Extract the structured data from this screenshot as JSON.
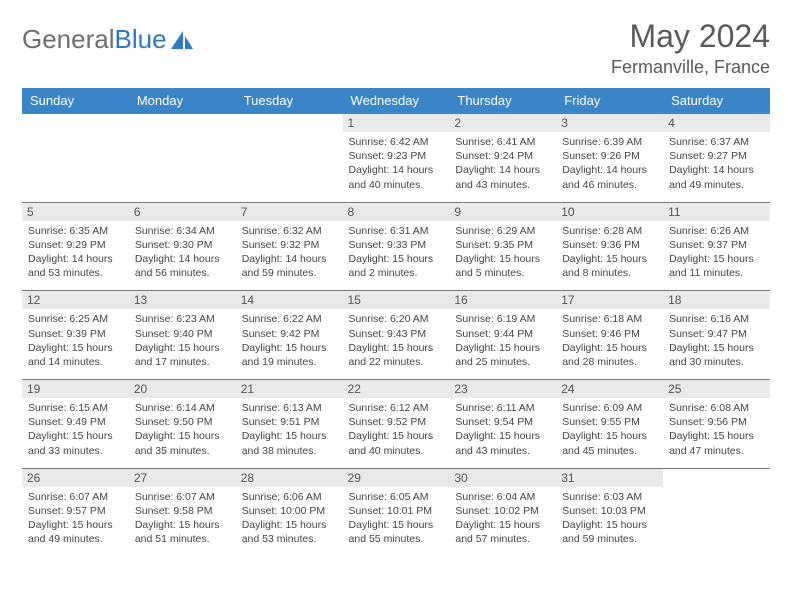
{
  "brand": {
    "part1": "General",
    "part2": "Blue"
  },
  "title": "May 2024",
  "location": "Fermanville, France",
  "colors": {
    "header_bg": "#3a85c7",
    "header_text": "#ffffff",
    "daynum_bg": "#e9e9e9",
    "border": "#7a7a7a",
    "brand_gray": "#6e6e6e",
    "brand_blue": "#2f7abf"
  },
  "day_headers": [
    "Sunday",
    "Monday",
    "Tuesday",
    "Wednesday",
    "Thursday",
    "Friday",
    "Saturday"
  ],
  "weeks": [
    [
      null,
      null,
      null,
      {
        "n": "1",
        "sr": "6:42 AM",
        "ss": "9:23 PM",
        "dl": "14 hours and 40 minutes."
      },
      {
        "n": "2",
        "sr": "6:41 AM",
        "ss": "9:24 PM",
        "dl": "14 hours and 43 minutes."
      },
      {
        "n": "3",
        "sr": "6:39 AM",
        "ss": "9:26 PM",
        "dl": "14 hours and 46 minutes."
      },
      {
        "n": "4",
        "sr": "6:37 AM",
        "ss": "9:27 PM",
        "dl": "14 hours and 49 minutes."
      }
    ],
    [
      {
        "n": "5",
        "sr": "6:35 AM",
        "ss": "9:29 PM",
        "dl": "14 hours and 53 minutes."
      },
      {
        "n": "6",
        "sr": "6:34 AM",
        "ss": "9:30 PM",
        "dl": "14 hours and 56 minutes."
      },
      {
        "n": "7",
        "sr": "6:32 AM",
        "ss": "9:32 PM",
        "dl": "14 hours and 59 minutes."
      },
      {
        "n": "8",
        "sr": "6:31 AM",
        "ss": "9:33 PM",
        "dl": "15 hours and 2 minutes."
      },
      {
        "n": "9",
        "sr": "6:29 AM",
        "ss": "9:35 PM",
        "dl": "15 hours and 5 minutes."
      },
      {
        "n": "10",
        "sr": "6:28 AM",
        "ss": "9:36 PM",
        "dl": "15 hours and 8 minutes."
      },
      {
        "n": "11",
        "sr": "6:26 AM",
        "ss": "9:37 PM",
        "dl": "15 hours and 11 minutes."
      }
    ],
    [
      {
        "n": "12",
        "sr": "6:25 AM",
        "ss": "9:39 PM",
        "dl": "15 hours and 14 minutes."
      },
      {
        "n": "13",
        "sr": "6:23 AM",
        "ss": "9:40 PM",
        "dl": "15 hours and 17 minutes."
      },
      {
        "n": "14",
        "sr": "6:22 AM",
        "ss": "9:42 PM",
        "dl": "15 hours and 19 minutes."
      },
      {
        "n": "15",
        "sr": "6:20 AM",
        "ss": "9:43 PM",
        "dl": "15 hours and 22 minutes."
      },
      {
        "n": "16",
        "sr": "6:19 AM",
        "ss": "9:44 PM",
        "dl": "15 hours and 25 minutes."
      },
      {
        "n": "17",
        "sr": "6:18 AM",
        "ss": "9:46 PM",
        "dl": "15 hours and 28 minutes."
      },
      {
        "n": "18",
        "sr": "6:16 AM",
        "ss": "9:47 PM",
        "dl": "15 hours and 30 minutes."
      }
    ],
    [
      {
        "n": "19",
        "sr": "6:15 AM",
        "ss": "9:49 PM",
        "dl": "15 hours and 33 minutes."
      },
      {
        "n": "20",
        "sr": "6:14 AM",
        "ss": "9:50 PM",
        "dl": "15 hours and 35 minutes."
      },
      {
        "n": "21",
        "sr": "6:13 AM",
        "ss": "9:51 PM",
        "dl": "15 hours and 38 minutes."
      },
      {
        "n": "22",
        "sr": "6:12 AM",
        "ss": "9:52 PM",
        "dl": "15 hours and 40 minutes."
      },
      {
        "n": "23",
        "sr": "6:11 AM",
        "ss": "9:54 PM",
        "dl": "15 hours and 43 minutes."
      },
      {
        "n": "24",
        "sr": "6:09 AM",
        "ss": "9:55 PM",
        "dl": "15 hours and 45 minutes."
      },
      {
        "n": "25",
        "sr": "6:08 AM",
        "ss": "9:56 PM",
        "dl": "15 hours and 47 minutes."
      }
    ],
    [
      {
        "n": "26",
        "sr": "6:07 AM",
        "ss": "9:57 PM",
        "dl": "15 hours and 49 minutes."
      },
      {
        "n": "27",
        "sr": "6:07 AM",
        "ss": "9:58 PM",
        "dl": "15 hours and 51 minutes."
      },
      {
        "n": "28",
        "sr": "6:06 AM",
        "ss": "10:00 PM",
        "dl": "15 hours and 53 minutes."
      },
      {
        "n": "29",
        "sr": "6:05 AM",
        "ss": "10:01 PM",
        "dl": "15 hours and 55 minutes."
      },
      {
        "n": "30",
        "sr": "6:04 AM",
        "ss": "10:02 PM",
        "dl": "15 hours and 57 minutes."
      },
      {
        "n": "31",
        "sr": "6:03 AM",
        "ss": "10:03 PM",
        "dl": "15 hours and 59 minutes."
      },
      null
    ]
  ],
  "labels": {
    "sunrise": "Sunrise: ",
    "sunset": "Sunset: ",
    "daylight": "Daylight: "
  }
}
